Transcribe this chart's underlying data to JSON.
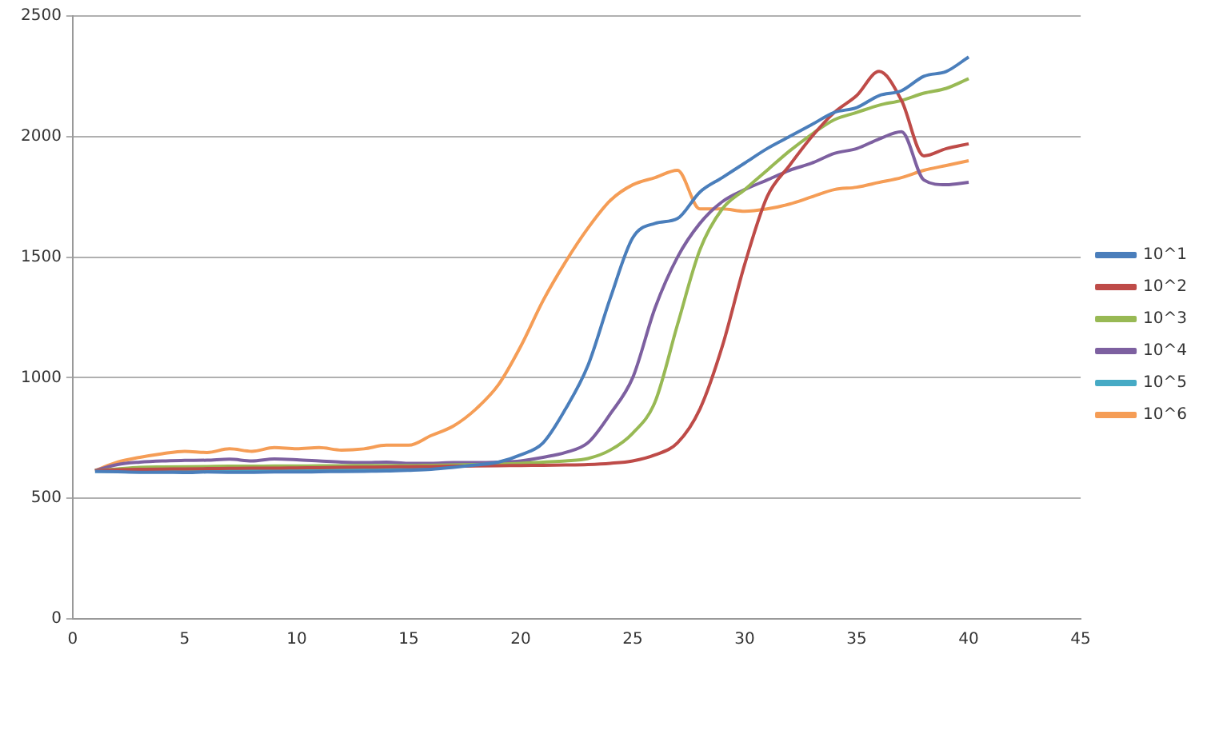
{
  "chart_data": {
    "type": "line",
    "x": [
      1,
      2,
      3,
      4,
      5,
      6,
      7,
      8,
      9,
      10,
      11,
      12,
      13,
      14,
      15,
      16,
      17,
      18,
      19,
      20,
      21,
      22,
      23,
      24,
      25,
      26,
      27,
      28,
      29,
      30,
      31,
      32,
      33,
      34,
      35,
      36,
      37,
      38,
      39,
      40
    ],
    "series": [
      {
        "name": "10^1",
        "color": "#4a7ebb",
        "values": [
          612,
          610,
          608,
          608,
          607,
          609,
          608,
          608,
          609,
          609,
          610,
          611,
          612,
          613,
          616,
          620,
          628,
          638,
          650,
          680,
          730,
          870,
          1050,
          1330,
          1580,
          1640,
          1660,
          1770,
          1830,
          1890,
          1950,
          2000,
          2050,
          2100,
          2120,
          2170,
          2190,
          2250,
          2270,
          2330
        ]
      },
      {
        "name": "10^2",
        "color": "#be4b48",
        "values": [
          615,
          618,
          620,
          621,
          622,
          623,
          624,
          625,
          625,
          626,
          627,
          628,
          629,
          630,
          631,
          632,
          633,
          634,
          635,
          636,
          637,
          638,
          640,
          645,
          655,
          680,
          730,
          870,
          1130,
          1470,
          1750,
          1880,
          2000,
          2100,
          2170,
          2270,
          2150,
          1920,
          1950,
          1970
        ]
      },
      {
        "name": "10^3",
        "color": "#98b954",
        "values": [
          615,
          622,
          628,
          630,
          631,
          632,
          633,
          633,
          634,
          634,
          635,
          635,
          636,
          636,
          636,
          637,
          638,
          640,
          642,
          645,
          650,
          655,
          665,
          700,
          770,
          900,
          1220,
          1530,
          1700,
          1780,
          1860,
          1940,
          2010,
          2070,
          2100,
          2130,
          2150,
          2180,
          2200,
          2240
        ]
      },
      {
        "name": "10^4",
        "color": "#7d60a0",
        "values": [
          615,
          640,
          650,
          655,
          657,
          658,
          662,
          655,
          663,
          660,
          655,
          650,
          648,
          650,
          645,
          645,
          648,
          648,
          650,
          655,
          670,
          690,
          730,
          850,
          1000,
          1290,
          1500,
          1640,
          1730,
          1780,
          1820,
          1860,
          1890,
          1930,
          1950,
          1990,
          2020,
          1820,
          1800,
          1810
        ]
      },
      {
        "name": "10^5",
        "color": "#46aac5",
        "values": [
          612,
          612,
          613,
          613,
          614,
          614,
          615,
          615,
          616,
          616,
          617,
          618,
          619,
          620,
          622,
          625,
          630,
          null,
          null,
          null,
          null,
          null,
          null,
          null,
          null,
          null,
          null,
          null,
          null,
          null,
          null,
          null,
          null,
          null,
          null,
          null,
          null,
          null,
          null,
          null
        ]
      },
      {
        "name": "10^6",
        "color": "#f59d56",
        "values": [
          615,
          650,
          670,
          685,
          695,
          690,
          705,
          695,
          710,
          705,
          710,
          700,
          705,
          720,
          720,
          760,
          800,
          870,
          970,
          1130,
          1320,
          1480,
          1620,
          1735,
          1800,
          1830,
          1860,
          1700,
          1700,
          1690,
          1700,
          1720,
          1750,
          1780,
          1790,
          1810,
          1830,
          1860,
          1880,
          1900
        ]
      }
    ],
    "xlim": [
      0,
      45
    ],
    "xticks": [
      0,
      5,
      10,
      15,
      20,
      25,
      30,
      35,
      40,
      45
    ],
    "ylim": [
      0,
      2500
    ],
    "yticks": [
      0,
      500,
      1000,
      1500,
      2000,
      2500
    ],
    "grid": "y",
    "legend": "right",
    "marker": "none",
    "line_style": "solid"
  }
}
